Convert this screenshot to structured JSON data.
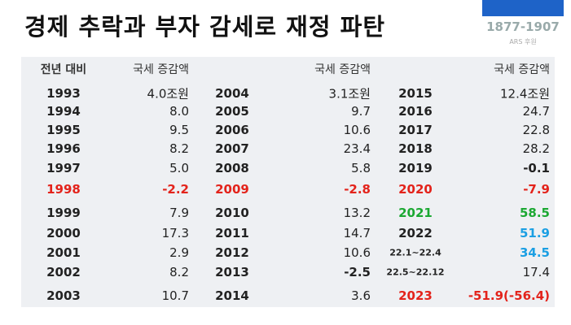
{
  "header": {
    "title": "경제 추락과 부자 감세로 재정 파탄",
    "logo_number": "1877-1907",
    "logo_caption": "ARS 후원"
  },
  "table": {
    "header": [
      {
        "label": "전년 대비",
        "value": "국세 증감액"
      },
      {
        "value": "국세 증감액"
      },
      {
        "value": "국세 증감액"
      }
    ],
    "colors": {
      "red": "#e3231b",
      "green": "#1ba832",
      "blue": "#1b9fe3"
    },
    "rows": [
      [
        {
          "label": "1993",
          "value": "4.0조원"
        },
        {
          "label": "2004",
          "value": "3.1조원"
        },
        {
          "label": "2015",
          "value": "12.4조원"
        }
      ],
      [
        {
          "label": "1994",
          "value": "8.0"
        },
        {
          "label": "2005",
          "value": "9.7"
        },
        {
          "label": "2016",
          "value": "24.7"
        }
      ],
      [
        {
          "label": "1995",
          "value": "9.5"
        },
        {
          "label": "2006",
          "value": "10.6"
        },
        {
          "label": "2017",
          "value": "22.8"
        }
      ],
      [
        {
          "label": "1996",
          "value": "8.2"
        },
        {
          "label": "2007",
          "value": "23.4"
        },
        {
          "label": "2018",
          "value": "28.2"
        }
      ],
      [
        {
          "label": "1997",
          "value": "5.0"
        },
        {
          "label": "2008",
          "value": "5.8"
        },
        {
          "label": "2019",
          "value": "-0.1",
          "bold": true
        }
      ],
      [
        {
          "label": "1998",
          "value": "-2.2",
          "color": "red",
          "bold": true
        },
        {
          "label": "2009",
          "value": "-2.8",
          "color": "red",
          "bold": true
        },
        {
          "label": "2020",
          "value": "-7.9",
          "color": "red",
          "bold": true
        }
      ],
      [
        {
          "label": "1999",
          "value": "7.9"
        },
        {
          "label": "2010",
          "value": "13.2"
        },
        {
          "label": "2021",
          "value": "58.5",
          "color": "green",
          "bold": true
        }
      ],
      [
        {
          "label": "2000",
          "value": "17.3"
        },
        {
          "label": "2011",
          "value": "14.7"
        },
        {
          "label": "2022",
          "value": "51.9",
          "value_color": "blue",
          "bold": true
        }
      ],
      [
        {
          "label": "2001",
          "value": "2.9"
        },
        {
          "label": "2012",
          "value": "10.6"
        },
        {
          "label": "22.1~22.4",
          "value": "34.5",
          "value_color": "blue",
          "bold": true,
          "small": true
        }
      ],
      [
        {
          "label": "2002",
          "value": "8.2"
        },
        {
          "label": "2013",
          "value": "-2.5",
          "bold": true
        },
        {
          "label": "22.5~22.12",
          "value": "17.4",
          "small": true
        }
      ],
      [
        {
          "label": "2003",
          "value": "10.7"
        },
        {
          "label": "2014",
          "value": "3.6"
        },
        {
          "label": "2023",
          "value": "-51.9(-56.4)",
          "color": "red",
          "bold": true
        }
      ]
    ]
  }
}
